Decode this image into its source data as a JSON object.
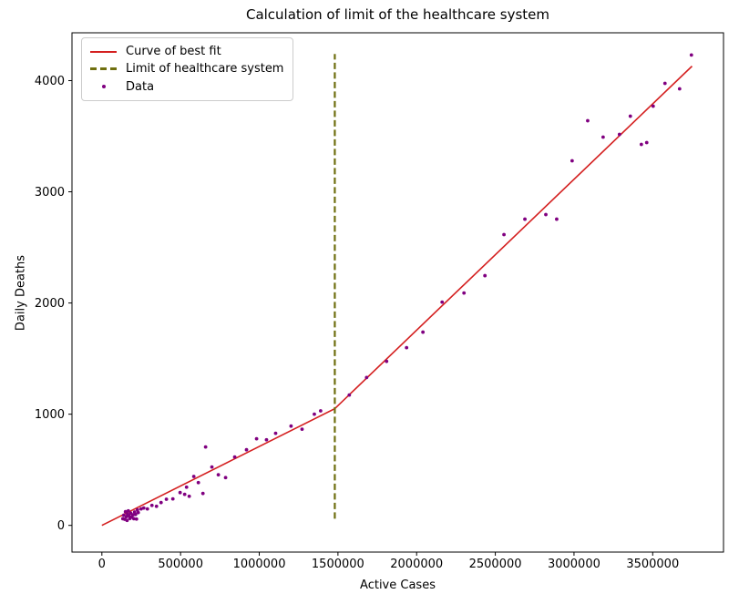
{
  "chart_data": {
    "type": "scatter",
    "title": "Calculation of limit of the healthcare system",
    "xlabel": "Active Cases",
    "ylabel": "Daily Deaths",
    "xlim": [
      -190000,
      3950000
    ],
    "ylim": [
      -240,
      4430
    ],
    "x_ticks": [
      0,
      500000,
      1000000,
      1500000,
      2000000,
      2500000,
      3000000,
      3500000
    ],
    "y_ticks": [
      0,
      1000,
      2000,
      3000,
      4000
    ],
    "grid": false,
    "legend_position": "upper-left",
    "colors": {
      "curve": "#d42020",
      "limit": "#6f6f0f",
      "data": "#800080",
      "axis": "#000000"
    },
    "series": [
      {
        "name": "Curve of best fit",
        "type": "line",
        "color": "#d42020",
        "points": [
          [
            0,
            0
          ],
          [
            1480000,
            1050
          ],
          [
            3750000,
            4130
          ]
        ]
      },
      {
        "name": "Limit of healthcare system",
        "type": "vline",
        "color": "#6f6f0f",
        "x": 1480000,
        "y_min": 60,
        "y_max": 4240,
        "dashed": true
      },
      {
        "name": "Data",
        "type": "scatter",
        "color": "#800080",
        "points": [
          [
            133000,
            60
          ],
          [
            139000,
            92
          ],
          [
            145000,
            55
          ],
          [
            150000,
            123
          ],
          [
            155000,
            78
          ],
          [
            160000,
            45
          ],
          [
            163000,
            100
          ],
          [
            168000,
            131
          ],
          [
            173000,
            85
          ],
          [
            178000,
            62
          ],
          [
            183000,
            110
          ],
          [
            190000,
            75
          ],
          [
            197000,
            95
          ],
          [
            203000,
            60
          ],
          [
            208000,
            120
          ],
          [
            214000,
            98
          ],
          [
            220000,
            57
          ],
          [
            226000,
            140
          ],
          [
            231000,
            115
          ],
          [
            249000,
            148
          ],
          [
            266000,
            156
          ],
          [
            289000,
            148
          ],
          [
            318000,
            180
          ],
          [
            347000,
            172
          ],
          [
            376000,
            205
          ],
          [
            410000,
            235
          ],
          [
            451000,
            238
          ],
          [
            497000,
            295
          ],
          [
            526000,
            279
          ],
          [
            538000,
            344
          ],
          [
            555000,
            262
          ],
          [
            584000,
            440
          ],
          [
            613000,
            385
          ],
          [
            642000,
            287
          ],
          [
            659000,
            705
          ],
          [
            699000,
            525
          ],
          [
            740000,
            455
          ],
          [
            786000,
            430
          ],
          [
            844000,
            615
          ],
          [
            919000,
            680
          ],
          [
            983000,
            779
          ],
          [
            1046000,
            770
          ],
          [
            1104000,
            828
          ],
          [
            1202000,
            893
          ],
          [
            1272000,
            865
          ],
          [
            1350000,
            1000
          ],
          [
            1390000,
            1030
          ],
          [
            1572000,
            1172
          ],
          [
            1682000,
            1330
          ],
          [
            1809000,
            1475
          ],
          [
            1936000,
            1598
          ],
          [
            2040000,
            1738
          ],
          [
            2162000,
            2008
          ],
          [
            2301000,
            2090
          ],
          [
            2434000,
            2246
          ],
          [
            2555000,
            2615
          ],
          [
            2688000,
            2754
          ],
          [
            2821000,
            2795
          ],
          [
            2890000,
            2754
          ],
          [
            2988000,
            3279
          ],
          [
            3087000,
            3639
          ],
          [
            3185000,
            3492
          ],
          [
            3289000,
            3516
          ],
          [
            3358000,
            3680
          ],
          [
            3428000,
            3426
          ],
          [
            3462000,
            3443
          ],
          [
            3503000,
            3770
          ],
          [
            3578000,
            3975
          ],
          [
            3671000,
            3926
          ],
          [
            3746000,
            4230
          ]
        ]
      }
    ]
  }
}
